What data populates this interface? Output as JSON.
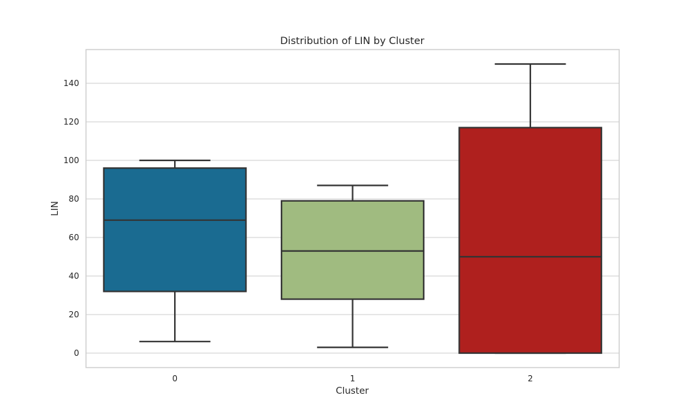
{
  "chart_data": {
    "type": "box",
    "title": "Distribution of LIN by Cluster",
    "xlabel": "Cluster",
    "ylabel": "LIN",
    "categories": [
      "0",
      "1",
      "2"
    ],
    "ylim": [
      -7.5,
      157.5
    ],
    "yticks": [
      0,
      20,
      40,
      60,
      80,
      100,
      120,
      140
    ],
    "grid": true,
    "boxes": [
      {
        "category": "0",
        "whisker_low": 6,
        "q1": 32,
        "median": 69,
        "q3": 96,
        "whisker_high": 100,
        "color": "#1a6b91"
      },
      {
        "category": "1",
        "whisker_low": 3,
        "q1": 28,
        "median": 53,
        "q3": 79,
        "whisker_high": 87,
        "color": "#a0bb80"
      },
      {
        "category": "2",
        "whisker_low": 0,
        "q1": 0,
        "median": 50,
        "q3": 117,
        "whisker_high": 150,
        "color": "#af201e"
      }
    ]
  }
}
